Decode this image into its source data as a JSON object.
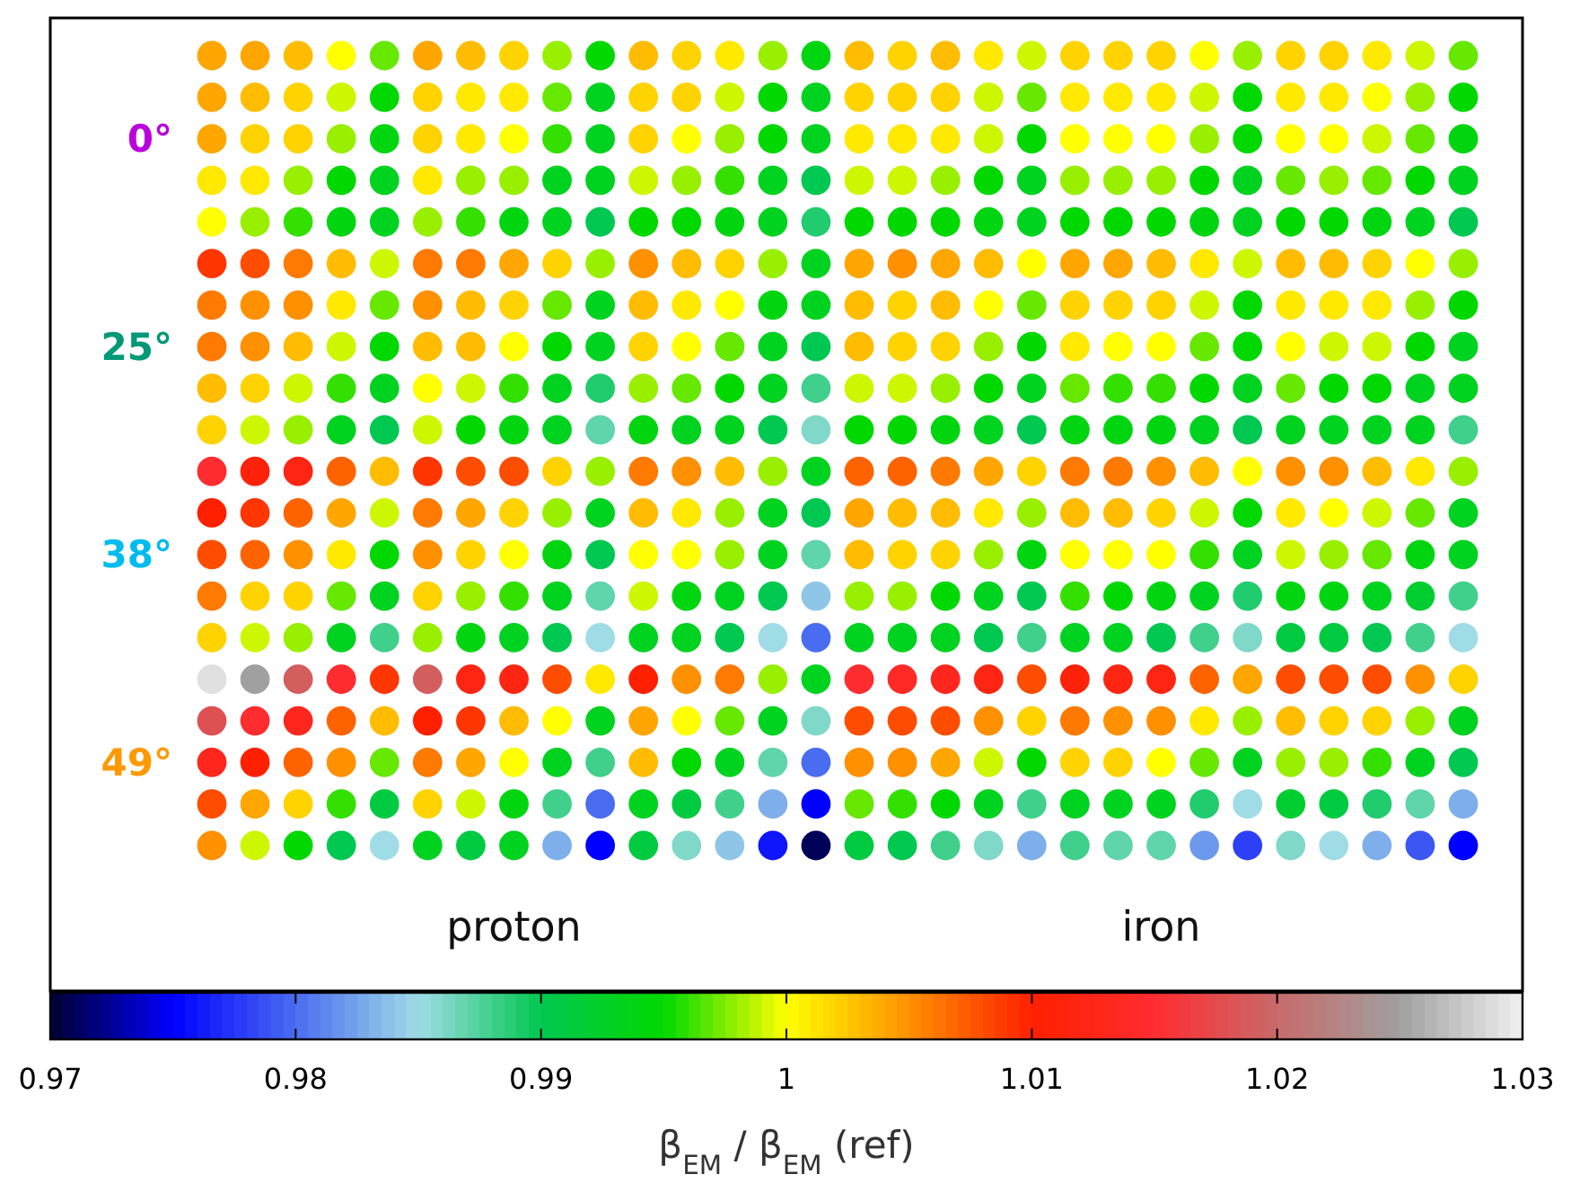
{
  "chart_data": {
    "type": "heatmap",
    "categories": [
      null,
      null,
      null,
      null,
      null,
      null,
      null,
      null,
      null,
      null,
      null,
      null,
      null,
      null,
      null,
      null,
      null,
      null,
      null,
      null,
      null,
      null,
      null,
      null,
      null,
      null,
      null,
      null,
      null,
      null
    ],
    "y_categories": [
      null,
      null,
      "0°",
      null,
      null,
      null,
      null,
      "25°",
      null,
      null,
      null,
      null,
      "38°",
      null,
      null,
      null,
      null,
      "49°",
      null,
      null
    ],
    "cells": [
      [
        1.004,
        1.004,
        1.003,
        1.0,
        0.997,
        1.004,
        1.003,
        1.002,
        0.998,
        0.995,
        1.003,
        1.002,
        1.001,
        0.998,
        0.994,
        1.003,
        1.002,
        1.003,
        1.001,
        0.999,
        1.002,
        1.002,
        1.002,
        1.0,
        0.998,
        1.002,
        1.002,
        1.001,
        0.999,
        0.997
      ],
      [
        1.004,
        1.003,
        1.002,
        0.999,
        0.995,
        1.002,
        1.001,
        1.001,
        0.997,
        0.993,
        1.002,
        1.002,
        0.999,
        0.995,
        0.993,
        1.002,
        1.002,
        1.002,
        0.999,
        0.997,
        1.001,
        1.001,
        1.001,
        0.999,
        0.995,
        1.001,
        1.001,
        1.0,
        0.998,
        0.995
      ],
      [
        1.004,
        1.002,
        1.002,
        0.998,
        0.994,
        1.002,
        1.001,
        1.0,
        0.996,
        0.993,
        1.002,
        1.0,
        0.998,
        0.995,
        0.993,
        1.001,
        1.001,
        1.001,
        0.999,
        0.995,
        1.0,
        1.0,
        1.0,
        0.998,
        0.995,
        1.0,
        1.0,
        0.999,
        0.997,
        0.994
      ],
      [
        1.001,
        1.001,
        0.998,
        0.995,
        0.993,
        1.001,
        0.998,
        0.998,
        0.993,
        0.993,
        0.999,
        0.998,
        0.996,
        0.993,
        0.99,
        0.999,
        0.999,
        0.998,
        0.995,
        0.993,
        0.998,
        0.998,
        0.998,
        0.995,
        0.993,
        0.997,
        0.998,
        0.997,
        0.995,
        0.993
      ],
      [
        1.0,
        0.998,
        0.996,
        0.994,
        0.993,
        0.998,
        0.996,
        0.994,
        0.993,
        0.99,
        0.995,
        0.995,
        0.994,
        0.993,
        0.989,
        0.995,
        0.995,
        0.995,
        0.994,
        0.993,
        0.995,
        0.995,
        0.995,
        0.994,
        0.993,
        0.995,
        0.995,
        0.994,
        0.993,
        0.99
      ],
      [
        1.009,
        1.008,
        1.006,
        1.003,
        0.999,
        1.006,
        1.006,
        1.004,
        1.002,
        0.998,
        1.005,
        1.003,
        1.002,
        0.998,
        0.993,
        1.004,
        1.005,
        1.004,
        1.003,
        1.0,
        1.004,
        1.004,
        1.003,
        1.001,
        0.999,
        1.003,
        1.003,
        1.002,
        1.0,
        0.998
      ],
      [
        1.006,
        1.005,
        1.005,
        1.001,
        0.997,
        1.005,
        1.003,
        1.002,
        0.997,
        0.993,
        1.003,
        1.001,
        1.0,
        0.994,
        0.993,
        1.003,
        1.002,
        1.003,
        1.0,
        0.997,
        1.002,
        1.002,
        1.002,
        0.999,
        0.995,
        1.001,
        1.001,
        1.001,
        0.998,
        0.995
      ],
      [
        1.006,
        1.005,
        1.003,
        0.999,
        0.995,
        1.003,
        1.003,
        1.0,
        0.995,
        0.993,
        1.002,
        1.0,
        0.997,
        0.993,
        0.99,
        1.003,
        1.002,
        1.002,
        0.998,
        0.995,
        1.001,
        1.0,
        1.0,
        0.997,
        0.995,
        1.0,
        0.999,
        0.999,
        0.995,
        0.993
      ],
      [
        1.003,
        1.002,
        0.999,
        0.996,
        0.993,
        1.0,
        0.999,
        0.996,
        0.993,
        0.989,
        0.998,
        0.997,
        0.995,
        0.993,
        0.988,
        0.999,
        0.999,
        0.998,
        0.995,
        0.993,
        0.997,
        0.996,
        0.996,
        0.995,
        0.993,
        0.997,
        0.995,
        0.995,
        0.993,
        0.993
      ],
      [
        1.002,
        0.999,
        0.998,
        0.993,
        0.99,
        0.999,
        0.995,
        0.994,
        0.993,
        0.987,
        0.994,
        0.993,
        0.993,
        0.99,
        0.986,
        0.995,
        0.995,
        0.994,
        0.993,
        0.99,
        0.994,
        0.994,
        0.994,
        0.993,
        0.99,
        0.993,
        0.993,
        0.993,
        0.993,
        0.988
      ],
      [
        1.015,
        1.011,
        1.012,
        1.007,
        1.003,
        1.009,
        1.008,
        1.008,
        1.002,
        0.998,
        1.006,
        1.005,
        1.003,
        0.998,
        0.993,
        1.007,
        1.007,
        1.006,
        1.004,
        1.002,
        1.006,
        1.006,
        1.005,
        1.003,
        1.0,
        1.005,
        1.005,
        1.003,
        1.001,
        0.998
      ],
      [
        1.01,
        1.009,
        1.007,
        1.004,
        0.999,
        1.006,
        1.004,
        1.002,
        0.998,
        0.993,
        1.003,
        1.001,
        0.998,
        0.993,
        0.99,
        1.004,
        1.003,
        1.003,
        1.001,
        0.998,
        1.003,
        1.003,
        1.002,
        0.999,
        0.995,
        1.001,
        1.0,
        0.999,
        0.997,
        0.993
      ],
      [
        1.008,
        1.007,
        1.005,
        1.001,
        0.995,
        1.005,
        1.002,
        1.0,
        0.994,
        0.99,
        1.0,
        1.0,
        0.998,
        0.993,
        0.987,
        1.003,
        1.002,
        1.002,
        0.998,
        0.994,
        1.0,
        1.0,
        1.0,
        0.996,
        0.993,
        0.999,
        0.998,
        0.997,
        0.994,
        0.993
      ],
      [
        1.006,
        1.002,
        1.002,
        0.997,
        0.993,
        1.002,
        0.998,
        0.996,
        0.993,
        0.987,
        0.999,
        0.994,
        0.993,
        0.99,
        0.984,
        0.998,
        0.998,
        0.995,
        0.993,
        0.99,
        0.996,
        0.995,
        0.994,
        0.993,
        0.989,
        0.994,
        0.994,
        0.993,
        0.992,
        0.988
      ],
      [
        1.002,
        0.999,
        0.998,
        0.993,
        0.988,
        0.998,
        0.994,
        0.993,
        0.99,
        0.985,
        0.993,
        0.993,
        0.99,
        0.985,
        0.98,
        0.993,
        0.993,
        0.993,
        0.99,
        0.988,
        0.993,
        0.993,
        0.99,
        0.988,
        0.986,
        0.991,
        0.991,
        0.99,
        0.988,
        0.985
      ],
      [
        1.029,
        1.025,
        1.019,
        1.015,
        1.009,
        1.019,
        1.012,
        1.012,
        1.008,
        1.001,
        1.01,
        1.005,
        1.006,
        0.998,
        0.993,
        1.015,
        1.014,
        1.013,
        1.012,
        1.008,
        1.011,
        1.012,
        1.012,
        1.007,
        1.004,
        1.008,
        1.008,
        1.008,
        1.005,
        1.002
      ],
      [
        1.018,
        1.015,
        1.013,
        1.007,
        1.003,
        1.01,
        1.009,
        1.003,
        1.0,
        0.993,
        1.004,
        1.0,
        0.997,
        0.993,
        0.986,
        1.008,
        1.008,
        1.008,
        1.005,
        1.002,
        1.006,
        1.005,
        1.005,
        1.001,
        0.998,
        1.003,
        1.002,
        1.002,
        0.998,
        0.993
      ],
      [
        1.013,
        1.01,
        1.007,
        1.005,
        0.997,
        1.006,
        1.004,
        1.0,
        0.993,
        0.988,
        1.003,
        0.995,
        0.993,
        0.987,
        0.98,
        1.005,
        1.005,
        1.004,
        0.999,
        0.995,
        1.002,
        1.002,
        1.0,
        0.997,
        0.993,
        0.998,
        0.998,
        0.996,
        0.993,
        0.99
      ],
      [
        1.008,
        1.004,
        1.002,
        0.996,
        0.991,
        1.002,
        0.999,
        0.994,
        0.988,
        0.98,
        0.993,
        0.991,
        0.988,
        0.983,
        0.975,
        0.997,
        0.996,
        0.995,
        0.993,
        0.988,
        0.993,
        0.993,
        0.993,
        0.989,
        0.985,
        0.992,
        0.991,
        0.989,
        0.987,
        0.983
      ],
      [
        1.005,
        0.999,
        0.995,
        0.99,
        0.985,
        0.993,
        0.991,
        0.993,
        0.983,
        0.975,
        0.991,
        0.986,
        0.984,
        0.976,
        0.971,
        0.991,
        0.99,
        0.988,
        0.986,
        0.983,
        0.988,
        0.987,
        0.987,
        0.982,
        0.978,
        0.986,
        0.985,
        0.983,
        0.979,
        0.975
      ]
    ],
    "colors": [
      "#000030",
      "#0000ff",
      "#4a6cf0",
      "#a0dce6",
      "#00c850",
      "#00d800",
      "#ffff00",
      "#ff9000",
      "#ff2000",
      "#ff2c30",
      "#c86a6a",
      "#a0a0a0",
      "#f0f0f0"
    ],
    "clim": [
      0.97,
      1.03
    ],
    "cticks": [
      0.97,
      0.98,
      0.99,
      1,
      1.01,
      1.02,
      1.03
    ],
    "clabel": "β$_{EM}$ / β$_{EM}$ (ref)",
    "annotations": [
      "proton",
      "iron"
    ]
  }
}
